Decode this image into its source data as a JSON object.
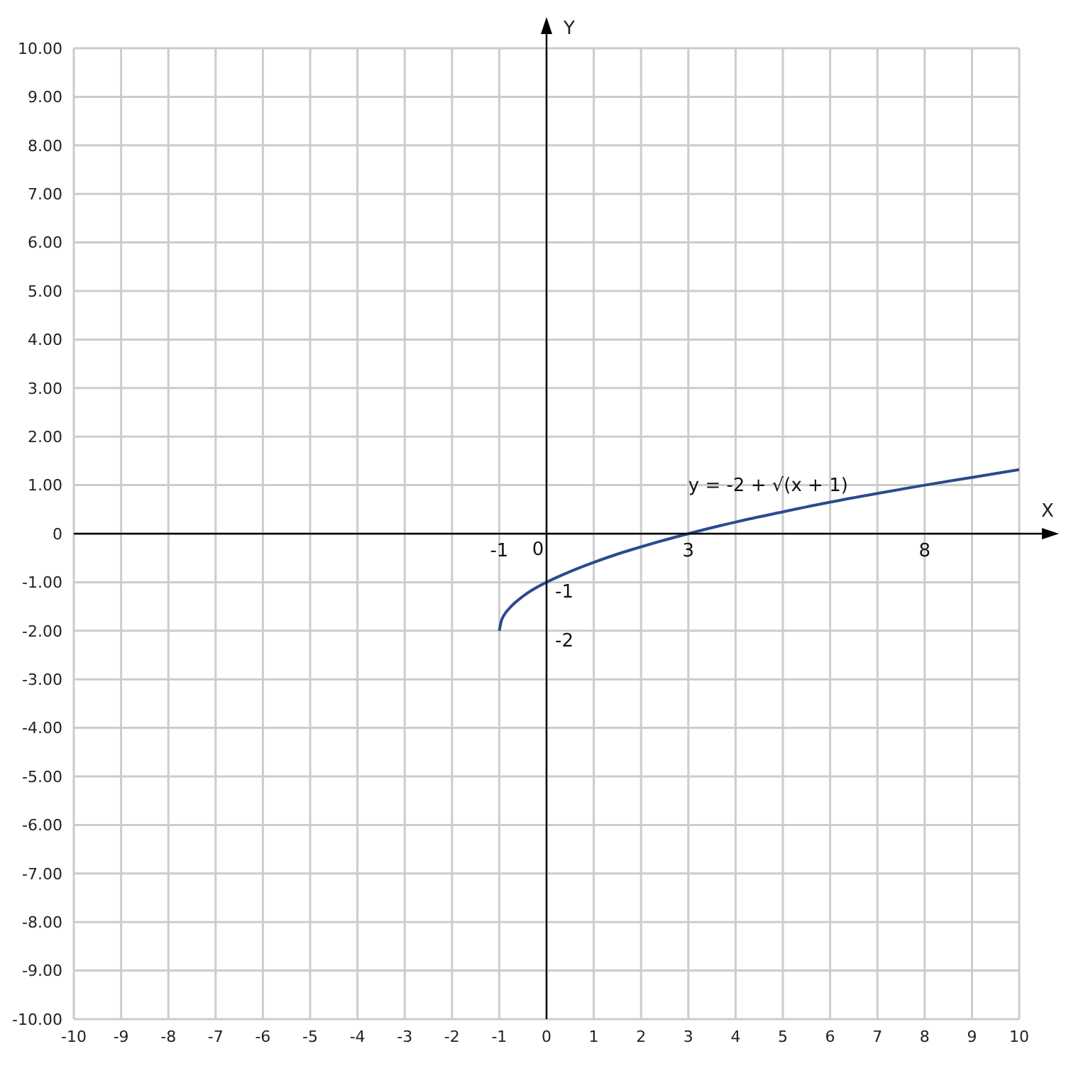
{
  "chart_data": {
    "type": "line",
    "xlabel": "X",
    "ylabel": "Y",
    "x": [
      -1,
      -0.95,
      -0.9,
      -0.75,
      -0.5,
      -0.25,
      0,
      0.5,
      1,
      1.5,
      2,
      3,
      4,
      5,
      6,
      7,
      8,
      9,
      10
    ],
    "series": [
      {
        "color": "#2b4a8e",
        "values": [
          -2,
          -1.78,
          -1.68,
          -1.5,
          -1.29,
          -1.13,
          -1,
          -0.78,
          -0.59,
          -0.42,
          -0.27,
          0,
          0.24,
          0.45,
          0.65,
          0.83,
          1,
          1.16,
          1.32
        ]
      }
    ],
    "xlim": [
      -10,
      10
    ],
    "xticks": [
      -10,
      -9,
      -8,
      -7,
      -6,
      -5,
      -4,
      -3,
      -2,
      -1,
      0,
      1,
      2,
      3,
      4,
      5,
      6,
      7,
      8,
      9,
      10
    ],
    "ylim": [
      -10,
      10
    ],
    "yticks": [
      {
        "value": -10,
        "label": "-10.00"
      },
      {
        "value": -9,
        "label": "-9.00"
      },
      {
        "value": -8,
        "label": "-8.00"
      },
      {
        "value": -7,
        "label": "-7.00"
      },
      {
        "value": -6,
        "label": "-6.00"
      },
      {
        "value": -5,
        "label": "-5.00"
      },
      {
        "value": -4,
        "label": "-4.00"
      },
      {
        "value": -3,
        "label": "-3.00"
      },
      {
        "value": -2,
        "label": "-2.00"
      },
      {
        "value": -1,
        "label": "-1.00"
      },
      0,
      {
        "value": 1,
        "label": "1.00"
      },
      {
        "value": 2,
        "label": "2.00"
      },
      {
        "value": 3,
        "label": "3.00"
      },
      {
        "value": 4,
        "label": "4.00"
      },
      {
        "value": 5,
        "label": "5.00"
      },
      {
        "value": 6,
        "label": "6.00"
      },
      {
        "value": 7,
        "label": "7.00"
      },
      {
        "value": 8,
        "label": "8.00"
      },
      {
        "value": 9,
        "label": "9.00"
      },
      {
        "value": 10,
        "label": "10.00"
      }
    ],
    "grid": true,
    "marker": "none",
    "line_style": "solid",
    "annotations": [
      "y = -2 + √(x + 1)",
      "-1",
      "0",
      {
        "text": "3",
        "x": 3,
        "y": 0
      },
      "8",
      {
        "text": "-1",
        "x": 0,
        "y": -1
      },
      "-2"
    ]
  }
}
